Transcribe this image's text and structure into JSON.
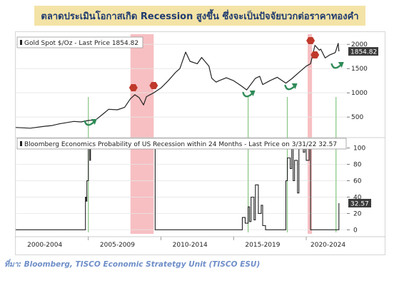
{
  "title_banner": "ตลาดประเมินโอกาสเกิด Recession สูงขึ้น ซึ่งจะเป็นปัจจัยบวกต่อราคาทองคำ",
  "source_note": "ที่มา: Bloomberg, TISCO Economic Stratetgy Unit (TISCO ESU)",
  "colors": {
    "line": "#222222",
    "recession_shade": "#f08a90",
    "arrow_green": "#2e8b57",
    "guide_green": "#8fc98a",
    "badge_red": "#c0392b",
    "price_label_bg": "#3a3a3a",
    "banner_bg": "#f4e3a6",
    "banner_text": "#1f3b70"
  },
  "chart_data": [
    {
      "type": "line",
      "legend": "Gold Spot $/Oz - Last Price 1854.82",
      "last_label": "1854.82",
      "last_value": 1854.82,
      "y_ticks": [
        "2000",
        "1500",
        "1000",
        "500"
      ],
      "ylim": [
        150,
        2150
      ],
      "x": [
        2000.0,
        2001.0,
        2002.0,
        2002.5,
        2003.0,
        2004.0,
        2004.5,
        2005.0,
        2005.5,
        2006.0,
        2006.4,
        2007.0,
        2007.5,
        2007.9,
        2008.2,
        2008.5,
        2008.8,
        2009.0,
        2009.5,
        2010.0,
        2010.5,
        2011.0,
        2011.3,
        2011.7,
        2012.0,
        2012.5,
        2012.8,
        2013.3,
        2013.5,
        2013.8,
        2014.0,
        2014.5,
        2015.0,
        2015.5,
        2015.9,
        2016.5,
        2016.8,
        2017.0,
        2017.5,
        2018.0,
        2018.6,
        2019.0,
        2019.5,
        2020.0,
        2020.3,
        2020.6,
        2020.9,
        2021.0,
        2021.3,
        2021.6,
        2022.0,
        2022.2,
        2022.25
      ],
      "values": [
        285,
        270,
        310,
        325,
        360,
        410,
        400,
        430,
        440,
        560,
        660,
        650,
        700,
        880,
        960,
        900,
        750,
        920,
        1000,
        1100,
        1250,
        1420,
        1500,
        1840,
        1650,
        1600,
        1730,
        1550,
        1300,
        1220,
        1250,
        1310,
        1250,
        1150,
        1060,
        1300,
        1340,
        1170,
        1250,
        1320,
        1200,
        1290,
        1420,
        1550,
        1600,
        1980,
        1880,
        1900,
        1720,
        1780,
        1830,
        2020,
        1854.82
      ]
    },
    {
      "type": "line",
      "legend": "Bloomberg Economics Probability of US Recession within 24 Months - Last Price on 3/31/22 32.57",
      "last_label": "32.57",
      "last_value": 32.57,
      "y_ticks": [
        "100",
        "80",
        "60",
        "40",
        "20",
        "0"
      ],
      "ylim": [
        -5,
        105
      ],
      "x": [
        2000.0,
        2004.7,
        2004.8,
        2004.85,
        2004.9,
        2005.0,
        2005.1,
        2005.15,
        2007.9,
        2008.0,
        2009.5,
        2009.6,
        2015.5,
        2015.6,
        2015.8,
        2016.0,
        2016.1,
        2016.2,
        2016.4,
        2016.5,
        2016.7,
        2016.9,
        2017.0,
        2017.2,
        2018.5,
        2018.6,
        2018.7,
        2018.9,
        2019.0,
        2019.1,
        2019.2,
        2019.4,
        2019.5,
        2019.8,
        2019.9,
        2020.0,
        2020.2,
        2020.3,
        2021.0,
        2021.1,
        2022.15,
        2022.25
      ],
      "values": [
        0,
        0,
        40,
        35,
        60,
        100,
        85,
        100,
        100,
        100,
        100,
        0,
        0,
        15,
        8,
        28,
        10,
        40,
        12,
        55,
        20,
        30,
        5,
        0,
        0,
        60,
        88,
        75,
        100,
        60,
        85,
        45,
        100,
        95,
        100,
        85,
        100,
        0,
        0,
        0,
        0,
        32.57
      ]
    }
  ],
  "x_ticks": [
    "2000-2004",
    "2005-2009",
    "2010-2014",
    "2015-2019",
    "2020-2024"
  ],
  "xlim": [
    2000.0,
    2022.8
  ],
  "recession_bands": [
    [
      2007.9,
      2009.5
    ],
    [
      2020.1,
      2020.4
    ]
  ]
}
